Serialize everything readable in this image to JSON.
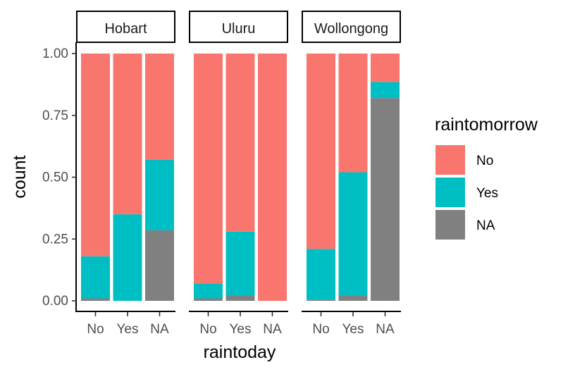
{
  "chart_data": {
    "type": "bar",
    "stacked": "fill",
    "xlabel": "raintoday",
    "ylabel": "count",
    "ylim": [
      0,
      1
    ],
    "yticks": [
      "0.00",
      "0.25",
      "0.50",
      "0.75",
      "1.00"
    ],
    "categories": [
      "No",
      "Yes",
      "NA"
    ],
    "legend": {
      "title": "raintomorrow",
      "position": "right",
      "entries": [
        "No",
        "Yes",
        "NA"
      ]
    },
    "colors": {
      "No": "#F8766D",
      "Yes": "#00BFC4",
      "NA": "#808080"
    },
    "facets": [
      {
        "label": "Hobart",
        "bars": [
          {
            "category": "No",
            "NA": 0.01,
            "Yes": 0.17,
            "No": 0.82
          },
          {
            "category": "Yes",
            "NA": 0.0,
            "Yes": 0.35,
            "No": 0.65
          },
          {
            "category": "NA",
            "NA": 0.285,
            "Yes": 0.285,
            "No": 0.43
          }
        ]
      },
      {
        "label": "Uluru",
        "bars": [
          {
            "category": "No",
            "NA": 0.01,
            "Yes": 0.06,
            "No": 0.93
          },
          {
            "category": "Yes",
            "NA": 0.02,
            "Yes": 0.26,
            "No": 0.72
          },
          {
            "category": "NA",
            "NA": 0.0,
            "Yes": 0.0,
            "No": 1.0
          }
        ]
      },
      {
        "label": "Wollongong",
        "bars": [
          {
            "category": "No",
            "NA": 0.005,
            "Yes": 0.205,
            "No": 0.79
          },
          {
            "category": "Yes",
            "NA": 0.02,
            "Yes": 0.5,
            "No": 0.48
          },
          {
            "category": "NA",
            "NA": 0.82,
            "Yes": 0.065,
            "No": 0.115
          }
        ]
      }
    ]
  }
}
